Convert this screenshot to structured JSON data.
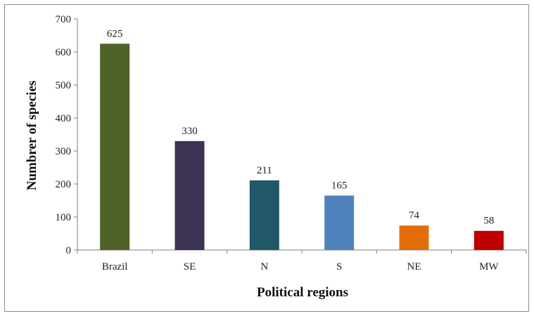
{
  "chart_data": {
    "type": "bar",
    "categories": [
      "Brazil",
      "SE",
      "N",
      "S",
      "NE",
      "MW"
    ],
    "values": [
      625,
      330,
      211,
      165,
      74,
      58
    ],
    "data_labels": [
      "625",
      "330",
      "211",
      "165",
      "74",
      "58"
    ],
    "colors": [
      "#4f6228",
      "#3d3352",
      "#215868",
      "#4f81bd",
      "#e36c09",
      "#c00000"
    ],
    "title": "",
    "xlabel": "Political regions",
    "ylabel": "Numbrer of species",
    "ylim": [
      0,
      700
    ],
    "yticks": [
      0,
      100,
      200,
      300,
      400,
      500,
      600,
      700
    ],
    "grid": false,
    "legend": "none"
  }
}
